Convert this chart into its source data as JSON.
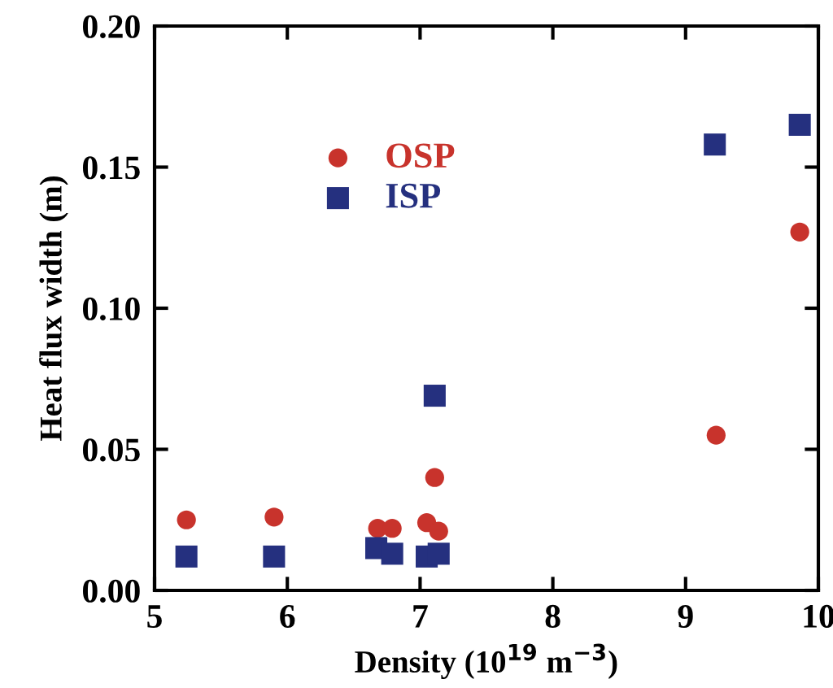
{
  "chart_data": {
    "type": "scatter",
    "xlabel": "Density (10$^{19}$ m$^{−3}$)",
    "ylabel": "Heat flux width (m)",
    "xlim": [
      5,
      10
    ],
    "xticks": [
      5,
      6,
      7,
      8,
      9,
      10
    ],
    "ylim": [
      0,
      0.2
    ],
    "yticks": [
      {
        "value": 0,
        "label": "0.00"
      },
      {
        "value": 0.05,
        "label": "0.05"
      },
      {
        "value": 0.1,
        "label": "0.10"
      },
      {
        "value": 0.15,
        "label": "0.15"
      },
      {
        "value": 0.2,
        "label": "0.20"
      }
    ],
    "grid": false,
    "legend": "top left",
    "series": [
      {
        "name": "OSP",
        "color": "#c8332c",
        "marker": "circle",
        "x": [
          5.24,
          5.9,
          6.68,
          6.79,
          7.05,
          7.14,
          7.11,
          9.23,
          9.86
        ],
        "values": [
          0.025,
          0.026,
          0.022,
          0.022,
          0.024,
          0.021,
          0.04,
          0.055,
          0.127
        ]
      },
      {
        "name": "ISP",
        "color": "#25307f",
        "marker": "square",
        "x": [
          5.24,
          5.9,
          6.67,
          6.79,
          7.05,
          7.14,
          7.11,
          9.22,
          9.86
        ],
        "values": [
          0.012,
          0.012,
          0.015,
          0.013,
          0.012,
          0.013,
          0.069,
          0.158,
          0.165
        ]
      }
    ]
  }
}
